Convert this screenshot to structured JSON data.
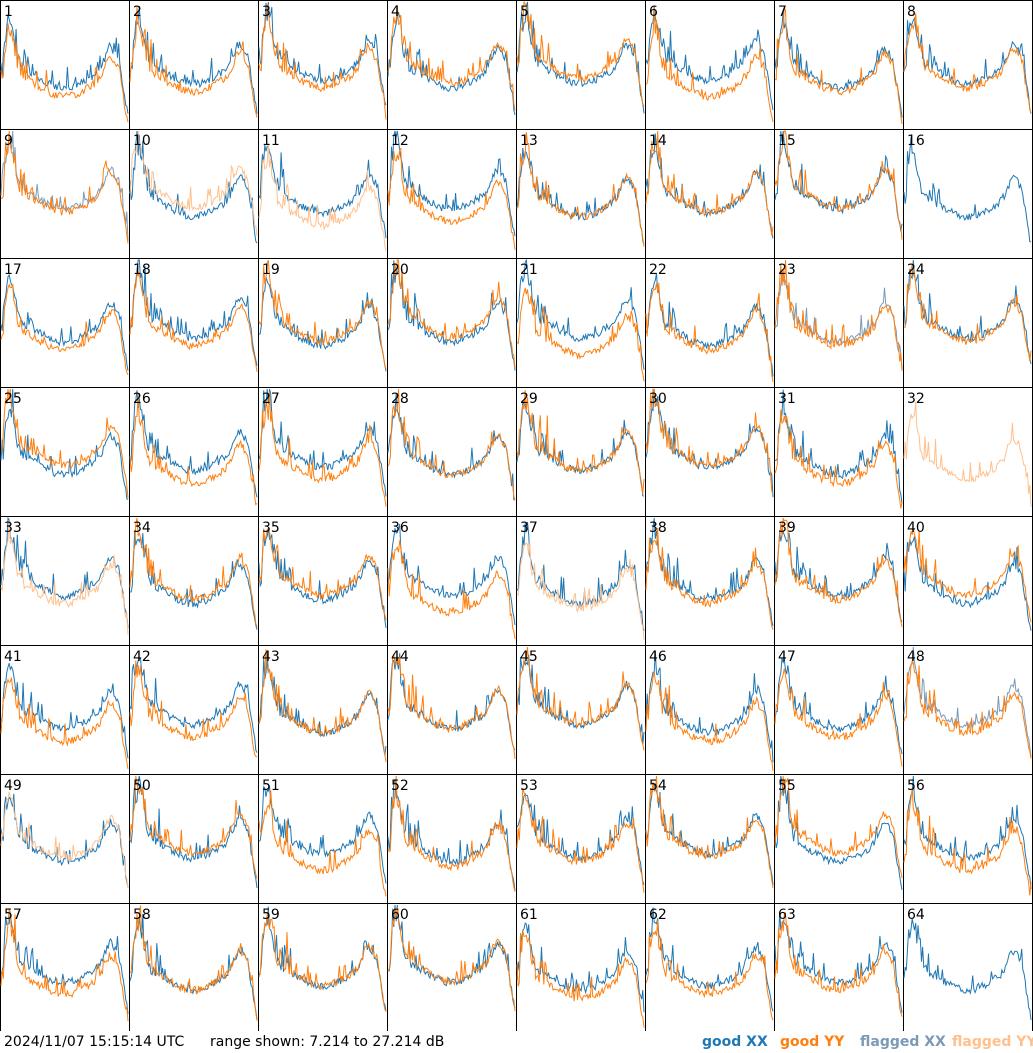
{
  "chart_data": {
    "type": "line",
    "layout": "small-multiples 8x8",
    "panels": [
      "1",
      "2",
      "3",
      "4",
      "5",
      "6",
      "7",
      "8",
      "9",
      "10",
      "11",
      "12",
      "13",
      "14",
      "15",
      "16",
      "17",
      "18",
      "19",
      "20",
      "21",
      "22",
      "23",
      "24",
      "25",
      "26",
      "27",
      "28",
      "29",
      "30",
      "31",
      "32",
      "33",
      "34",
      "35",
      "36",
      "37",
      "38",
      "39",
      "40",
      "41",
      "42",
      "43",
      "44",
      "45",
      "46",
      "47",
      "48",
      "49",
      "50",
      "51",
      "52",
      "53",
      "54",
      "55",
      "56",
      "57",
      "58",
      "59",
      "60",
      "61",
      "62",
      "63",
      "64"
    ],
    "ylim": [
      7.214,
      27.214
    ],
    "yunit": "dB",
    "grid": false,
    "legend_position": "bottom-right",
    "series": [
      {
        "name": "good XX",
        "color": "#1f77b4"
      },
      {
        "name": "good YY",
        "color": "#ff7f0e"
      },
      {
        "name": "flagged XX",
        "color": "#7b9ab8"
      },
      {
        "name": "flagged YY",
        "color": "#ffc08d"
      }
    ],
    "flagged_xx_panels": [
      "9",
      "23",
      "48"
    ],
    "flagged_yy_panels": [
      "10",
      "11",
      "32",
      "33",
      "37",
      "49"
    ],
    "xx_missing_panels": [
      "32"
    ],
    "yy_missing_panels": [
      "16",
      "64"
    ]
  },
  "footer": {
    "timestamp": "2024/11/07 15:15:14 UTC",
    "range_text": "range shown: 7.214 to 27.214 dB"
  },
  "legend": {
    "good_xx": "good XX",
    "good_yy": "good YY",
    "flagged_xx": "flagged XX",
    "flagged_yy": "flagged YY"
  }
}
